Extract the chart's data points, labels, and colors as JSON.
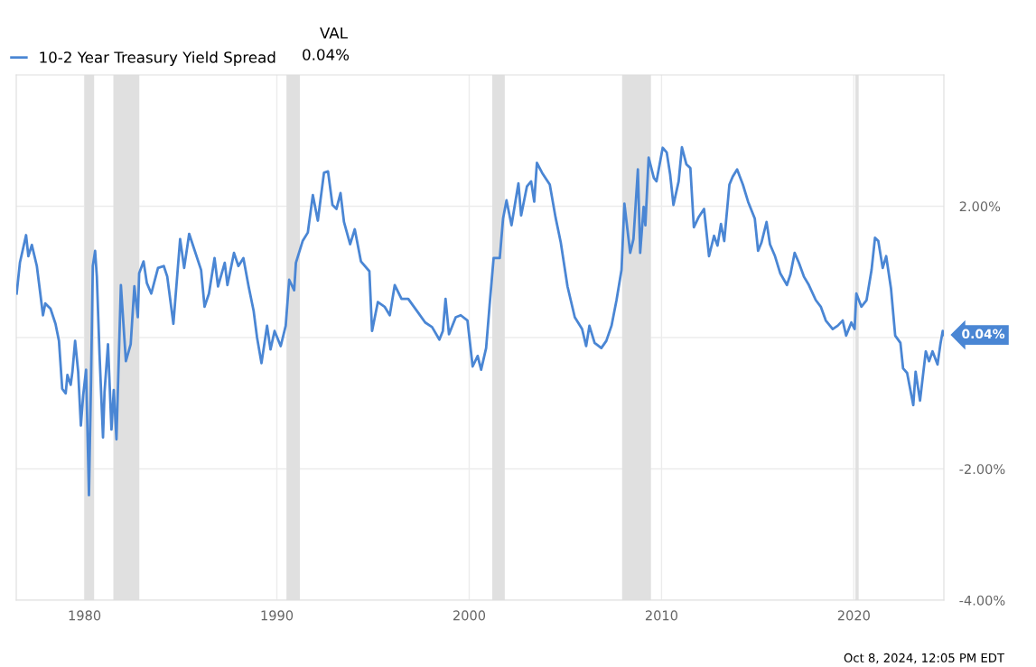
{
  "chart_data": {
    "type": "line",
    "legend": "top left",
    "legend_title": "VAL",
    "grid": true,
    "xlim": [
      1976.45,
      2024.68
    ],
    "xticks": [
      1980,
      1990,
      2000,
      2010,
      2020
    ],
    "ylim": [
      -4,
      4
    ],
    "yticks": [
      {
        "value": -4,
        "label": "-4.00%"
      },
      {
        "value": -2,
        "label": "-2.00%"
      },
      {
        "value": 0,
        "label": null
      },
      {
        "value": 2,
        "label": "2.00%"
      }
    ],
    "bands": [
      {
        "axis": "x",
        "from": 1980.0,
        "to": 1980.5,
        "label": null,
        "color": "#e0e0e0"
      },
      {
        "axis": "x",
        "from": 1981.5,
        "to": 1982.85,
        "label": null,
        "color": "#e0e0e0"
      },
      {
        "axis": "x",
        "from": 1990.5,
        "to": 1991.2,
        "label": null,
        "color": "#e0e0e0"
      },
      {
        "axis": "x",
        "from": 2001.2,
        "to": 2001.85,
        "label": null,
        "color": "#e0e0e0"
      },
      {
        "axis": "x",
        "from": 2007.95,
        "to": 2009.45,
        "label": null,
        "color": "#e0e0e0"
      },
      {
        "axis": "x",
        "from": 2020.08,
        "to": 2020.25,
        "label": null,
        "color": "#e0e0e0"
      }
    ],
    "annotations": [
      "0.04%",
      {
        "text": "0.04%",
        "x": 2024.68,
        "y": 0.04
      },
      "Oct 8, 2024, 12:05 PM EDT"
    ],
    "series": [
      {
        "name": "10-2 Year Treasury Yield Spread",
        "color": "#4a86d4",
        "x": [
          1976.47,
          1976.64,
          1976.96,
          1977.08,
          1977.26,
          1977.52,
          1977.7,
          1977.84,
          1977.96,
          1978.23,
          1978.49,
          1978.67,
          1978.84,
          1979.02,
          1979.11,
          1979.28,
          1979.37,
          1979.51,
          1979.67,
          1979.81,
          1979.93,
          1980.08,
          1980.23,
          1980.34,
          1980.43,
          1980.55,
          1980.64,
          1980.78,
          1980.96,
          1981.04,
          1981.22,
          1981.4,
          1981.52,
          1981.66,
          1981.89,
          1982.15,
          1982.4,
          1982.59,
          1982.77,
          1982.84,
          1983.07,
          1983.24,
          1983.47,
          1983.82,
          1984.12,
          1984.3,
          1984.62,
          1984.97,
          1985.18,
          1985.44,
          1985.71,
          1986.06,
          1986.24,
          1986.47,
          1986.76,
          1986.94,
          1987.29,
          1987.43,
          1987.77,
          1988.0,
          1988.26,
          1988.53,
          1988.79,
          1988.97,
          1989.2,
          1989.49,
          1989.67,
          1989.88,
          1990.2,
          1990.46,
          1990.64,
          1990.9,
          1990.99,
          1991.34,
          1991.61,
          1991.87,
          1992.13,
          1992.45,
          1992.66,
          1992.89,
          1993.1,
          1993.31,
          1993.49,
          1993.81,
          1994.05,
          1994.37,
          1994.81,
          1994.95,
          1995.25,
          1995.6,
          1995.87,
          1996.13,
          1996.48,
          1996.83,
          1997.27,
          1997.71,
          1998.07,
          1998.45,
          1998.63,
          1998.77,
          1998.95,
          1999.3,
          1999.56,
          1999.91,
          2000.18,
          2000.44,
          2000.62,
          2000.88,
          2001.06,
          2001.27,
          2001.59,
          2001.76,
          2001.94,
          2002.2,
          2002.56,
          2002.7,
          2003.0,
          2003.22,
          2003.38,
          2003.52,
          2003.79,
          2004.19,
          2004.49,
          2004.76,
          2005.11,
          2005.49,
          2005.87,
          2006.08,
          2006.25,
          2006.52,
          2006.87,
          2007.13,
          2007.4,
          2007.66,
          2007.92,
          2008.07,
          2008.37,
          2008.54,
          2008.77,
          2008.89,
          2009.07,
          2009.16,
          2009.33,
          2009.6,
          2009.74,
          2010.06,
          2010.27,
          2010.45,
          2010.62,
          2010.89,
          2011.06,
          2011.29,
          2011.5,
          2011.68,
          2011.94,
          2012.21,
          2012.47,
          2012.73,
          2012.91,
          2013.09,
          2013.26,
          2013.53,
          2013.7,
          2013.93,
          2014.23,
          2014.5,
          2014.85,
          2015.02,
          2015.2,
          2015.46,
          2015.64,
          2015.9,
          2016.17,
          2016.52,
          2016.7,
          2016.92,
          2017.14,
          2017.4,
          2017.66,
          2018.02,
          2018.28,
          2018.54,
          2018.9,
          2019.16,
          2019.42,
          2019.6,
          2019.87,
          2020.04,
          2020.13,
          2020.39,
          2020.66,
          2020.92,
          2021.1,
          2021.27,
          2021.5,
          2021.68,
          2021.93,
          2022.15,
          2022.42,
          2022.56,
          2022.77,
          2023.09,
          2023.21,
          2023.44,
          2023.74,
          2023.91,
          2024.09,
          2024.35,
          2024.5,
          2024.62,
          2024.68
        ],
        "values": [
          0.67,
          1.14,
          1.56,
          1.24,
          1.41,
          1.09,
          0.67,
          0.34,
          0.52,
          0.44,
          0.21,
          -0.05,
          -0.78,
          -0.85,
          -0.57,
          -0.72,
          -0.52,
          -0.05,
          -0.52,
          -1.34,
          -0.88,
          -0.49,
          -2.4,
          -0.62,
          1.09,
          1.32,
          0.93,
          -0.26,
          -1.52,
          -0.83,
          -0.1,
          -1.4,
          -0.8,
          -1.55,
          0.8,
          -0.36,
          -0.1,
          0.78,
          0.31,
          0.98,
          1.16,
          0.83,
          0.67,
          1.06,
          1.09,
          0.93,
          0.21,
          1.5,
          1.06,
          1.58,
          1.34,
          1.03,
          0.47,
          0.67,
          1.21,
          0.78,
          1.14,
          0.8,
          1.29,
          1.09,
          1.21,
          0.78,
          0.41,
          0.0,
          -0.39,
          0.18,
          -0.18,
          0.1,
          -0.13,
          0.18,
          0.88,
          0.72,
          1.14,
          1.47,
          1.6,
          2.17,
          1.78,
          2.51,
          2.53,
          2.02,
          1.96,
          2.2,
          1.76,
          1.42,
          1.65,
          1.16,
          1.01,
          0.1,
          0.54,
          0.47,
          0.34,
          0.8,
          0.59,
          0.59,
          0.41,
          0.23,
          0.16,
          -0.03,
          0.1,
          0.59,
          0.05,
          0.31,
          0.34,
          0.26,
          -0.44,
          -0.28,
          -0.49,
          -0.16,
          0.49,
          1.21,
          1.21,
          1.81,
          2.09,
          1.71,
          2.35,
          1.86,
          2.3,
          2.38,
          2.07,
          2.66,
          2.51,
          2.33,
          1.83,
          1.45,
          0.78,
          0.31,
          0.13,
          -0.13,
          0.18,
          -0.08,
          -0.16,
          -0.05,
          0.18,
          0.57,
          1.03,
          2.04,
          1.29,
          1.5,
          2.56,
          1.29,
          1.99,
          1.71,
          2.74,
          2.43,
          2.38,
          2.89,
          2.82,
          2.48,
          2.02,
          2.38,
          2.9,
          2.64,
          2.58,
          1.68,
          1.84,
          1.96,
          1.24,
          1.55,
          1.4,
          1.73,
          1.47,
          2.33,
          2.45,
          2.56,
          2.33,
          2.07,
          1.81,
          1.32,
          1.45,
          1.76,
          1.42,
          1.24,
          0.98,
          0.8,
          0.96,
          1.29,
          1.14,
          0.93,
          0.8,
          0.57,
          0.47,
          0.26,
          0.13,
          0.18,
          0.26,
          0.03,
          0.23,
          0.13,
          0.67,
          0.47,
          0.57,
          1.03,
          1.52,
          1.47,
          1.06,
          1.24,
          0.75,
          0.03,
          -0.08,
          -0.47,
          -0.54,
          -1.03,
          -0.52,
          -0.96,
          -0.21,
          -0.36,
          -0.21,
          -0.41,
          -0.1,
          0.1,
          0.04
        ]
      }
    ]
  }
}
